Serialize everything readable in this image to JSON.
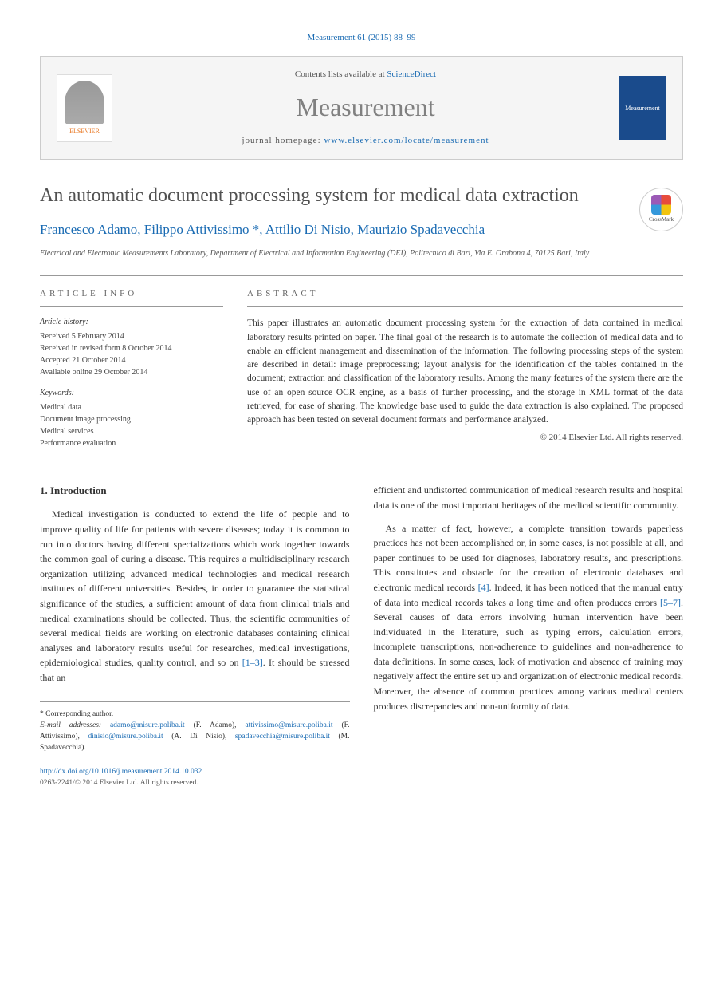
{
  "citation": "Measurement 61 (2015) 88–99",
  "banner": {
    "contents_prefix": "Contents lists available at ",
    "contents_link": "ScienceDirect",
    "journal_name": "Measurement",
    "homepage_prefix": "journal homepage: ",
    "homepage_url": "www.elsevier.com/locate/measurement",
    "publisher_logo": "ELSEVIER",
    "cover_text": "Measurement"
  },
  "title": "An automatic document processing system for medical data extraction",
  "crossmark_label": "CrossMark",
  "authors": "Francesco Adamo, Filippo Attivissimo *, Attilio Di Nisio, Maurizio Spadavecchia",
  "affiliation": "Electrical and Electronic Measurements Laboratory, Department of Electrical and Information Engineering (DEI), Politecnico di Bari, Via E. Orabona 4, 70125 Bari, Italy",
  "info": {
    "heading": "ARTICLE INFO",
    "history_label": "Article history:",
    "history": [
      "Received 5 February 2014",
      "Received in revised form 8 October 2014",
      "Accepted 21 October 2014",
      "Available online 29 October 2014"
    ],
    "keywords_label": "Keywords:",
    "keywords": [
      "Medical data",
      "Document image processing",
      "Medical services",
      "Performance evaluation"
    ]
  },
  "abstract": {
    "heading": "ABSTRACT",
    "text": "This paper illustrates an automatic document processing system for the extraction of data contained in medical laboratory results printed on paper. The final goal of the research is to automate the collection of medical data and to enable an efficient management and dissemination of the information. The following processing steps of the system are described in detail: image preprocessing; layout analysis for the identification of the tables contained in the document; extraction and classification of the laboratory results. Among the many features of the system there are the use of an open source OCR engine, as a basis of further processing, and the storage in XML format of the data retrieved, for ease of sharing. The knowledge base used to guide the data extraction is also explained. The proposed approach has been tested on several document formats and performance analyzed.",
    "copyright": "© 2014 Elsevier Ltd. All rights reserved."
  },
  "body": {
    "section_heading": "1. Introduction",
    "col1_p1": "Medical investigation is conducted to extend the life of people and to improve quality of life for patients with severe diseases; today it is common to run into doctors having different specializations which work together towards the common goal of curing a disease. This requires a multidisciplinary research organization utilizing advanced medical technologies and medical research institutes of different universities. Besides, in order to guarantee the statistical significance of the studies, a sufficient amount of data from clinical trials and medical examinations should be collected. Thus, the scientific communities of several medical fields are working on electronic databases containing clinical analyses and laboratory results useful for researches, medical investigations, epidemiological studies, quality control, and so on ",
    "col1_ref1": "[1–3]",
    "col1_p1_tail": ". It should be stressed that an",
    "col2_p1": "efficient and undistorted communication of medical research results and hospital data is one of the most important heritages of the medical scientific community.",
    "col2_p2_a": "As a matter of fact, however, a complete transition towards paperless practices has not been accomplished or, in some cases, is not possible at all, and paper continues to be used for diagnoses, laboratory results, and prescriptions. This constitutes and obstacle for the creation of electronic databases and electronic medical records ",
    "col2_ref4": "[4]",
    "col2_p2_b": ". Indeed, it has been noticed that the manual entry of data into medical records takes a long time and often produces errors ",
    "col2_ref57": "[5–7]",
    "col2_p2_c": ". Several causes of data errors involving human intervention have been individuated in the literature, such as typing errors, calculation errors, incomplete transcriptions, non-adherence to guidelines and non-adherence to data definitions. In some cases, lack of motivation and absence of training may negatively affect the entire set up and organization of electronic medical records. Moreover, the absence of common practices among various medical centers produces discrepancies and non-uniformity of data."
  },
  "footer": {
    "corresponding": "* Corresponding author.",
    "email_label": "E-mail addresses: ",
    "emails": [
      {
        "addr": "adamo@misure.poliba.it",
        "who": " (F. Adamo), "
      },
      {
        "addr": "attivissimo@misure.poliba.it",
        "who": " (F. Attivissimo), "
      },
      {
        "addr": "dinisio@misure.poliba.it",
        "who": " (A. Di Nisio), "
      },
      {
        "addr": "spadavecchia@misure.poliba.it",
        "who": " (M. Spadavecchia)."
      }
    ],
    "doi": "http://dx.doi.org/10.1016/j.measurement.2014.10.032",
    "issn": "0263-2241/© 2014 Elsevier Ltd. All rights reserved."
  }
}
